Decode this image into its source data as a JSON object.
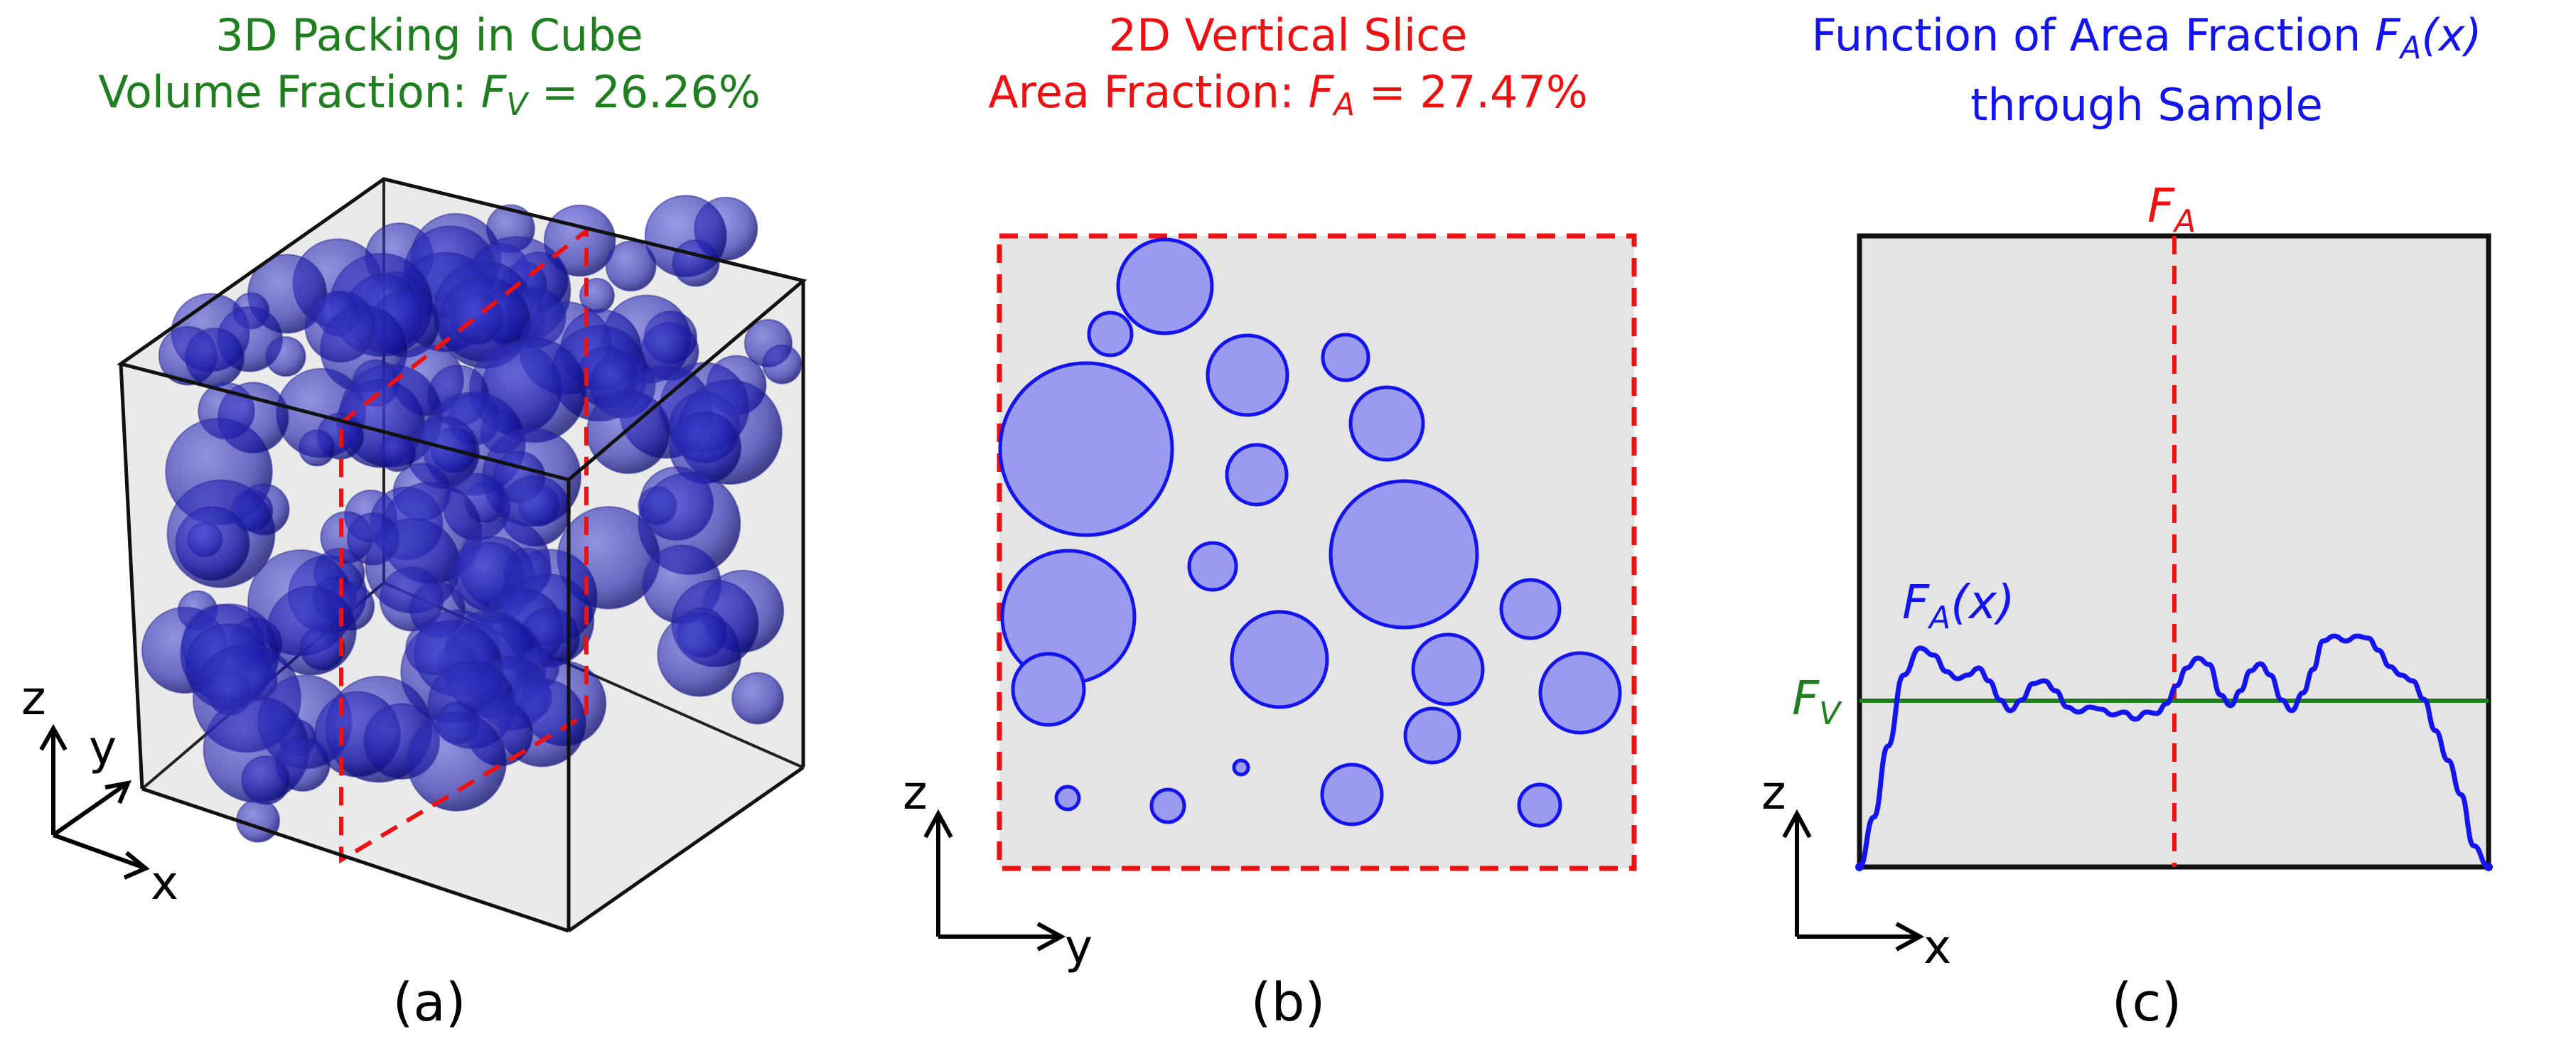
{
  "panel_a": {
    "title_line1": "3D Packing in Cube",
    "title_line2_prefix": "Volume Fraction: ",
    "title_symbol": "F",
    "title_symbol_sub": "V",
    "title_line2_suffix": " = 26.26%",
    "axis_z": "z",
    "axis_y": "y",
    "axis_x": "x",
    "caption": "(a)"
  },
  "panel_b": {
    "title_line1": "2D Vertical Slice",
    "title_line2_prefix": "Area Fraction: ",
    "title_symbol": "F",
    "title_symbol_sub": "A",
    "title_line2_suffix": " = 27.47%",
    "axis_z": "z",
    "axis_y": "y",
    "caption": "(b)"
  },
  "panel_c": {
    "title_line1_prefix": "Function of Area Fraction ",
    "title_symbol": "F",
    "title_symbol_sub": "A",
    "title_symbol_arg": "(x)",
    "title_line2": "through Sample",
    "slice_label": "F",
    "slice_label_sub": "A",
    "curve_label": "F",
    "curve_label_sub": "A",
    "curve_label_arg": "(x)",
    "fv_label": "F",
    "fv_label_sub": "V",
    "axis_z": "z",
    "axis_x": "x",
    "caption": "(c)"
  },
  "colors": {
    "green": "#1f7f1f",
    "red": "#ee1111",
    "blue": "#1414ee",
    "sphere": "#1a1aa8",
    "disk_fill": "#9a9aee",
    "background_gray": "#e4e4e4"
  }
}
